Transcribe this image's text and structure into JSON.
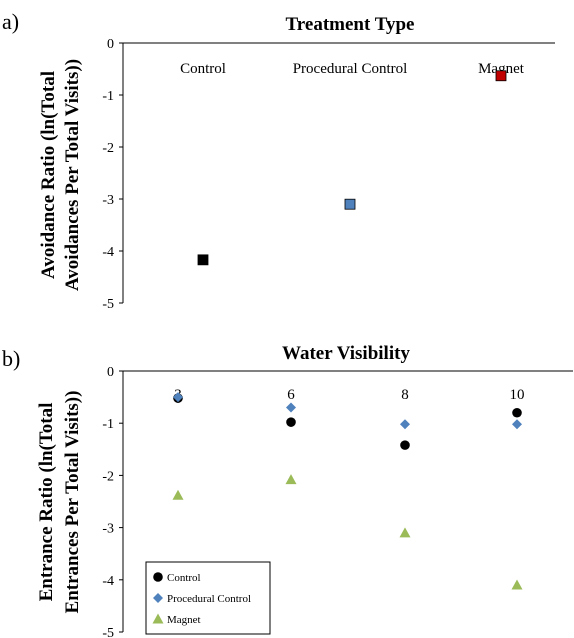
{
  "chart_data": [
    {
      "type": "scatter",
      "panel_label": "a)",
      "title": "Treatment Type",
      "ylabel_lines": [
        "Avoidance Ratio (ln(Total",
        "Avoidances Per Total Visits))"
      ],
      "categories": [
        "Control",
        "Procedural Control",
        "Magnet"
      ],
      "ylim": [
        -5,
        0
      ],
      "yticks": [
        "0",
        "-1",
        "-2",
        "-3",
        "-4",
        "-5"
      ],
      "grid": false,
      "series": [
        {
          "values": [
            -4.17,
            -3.1,
            -0.63
          ],
          "colors": [
            "#000000",
            "#4f81bd",
            "#c00000"
          ]
        }
      ]
    },
    {
      "type": "scatter",
      "panel_label": "b)",
      "title": "Water Visibility",
      "ylabel_lines": [
        "Entrance Ratio (ln(Total",
        "Entrances Per Total Visits))"
      ],
      "categories": [
        "3",
        "6",
        "8",
        "10"
      ],
      "ylim": [
        -5,
        0
      ],
      "yticks": [
        "0",
        "-1",
        "-2",
        "-3",
        "-4",
        "-5"
      ],
      "grid": false,
      "legend_position": "bottom-left",
      "series": [
        {
          "name": "Control",
          "marker": "circle",
          "color": "#000000",
          "values": [
            -0.52,
            -0.98,
            -1.42,
            -0.8
          ]
        },
        {
          "name": "Procedural Control",
          "marker": "diamond",
          "color": "#4f81bd",
          "values": [
            -0.5,
            -0.7,
            -1.02,
            -1.02
          ]
        },
        {
          "name": "Magnet",
          "marker": "triangle",
          "color": "#9bbb59",
          "values": [
            -2.38,
            -2.08,
            -3.1,
            -4.1
          ]
        }
      ]
    }
  ]
}
